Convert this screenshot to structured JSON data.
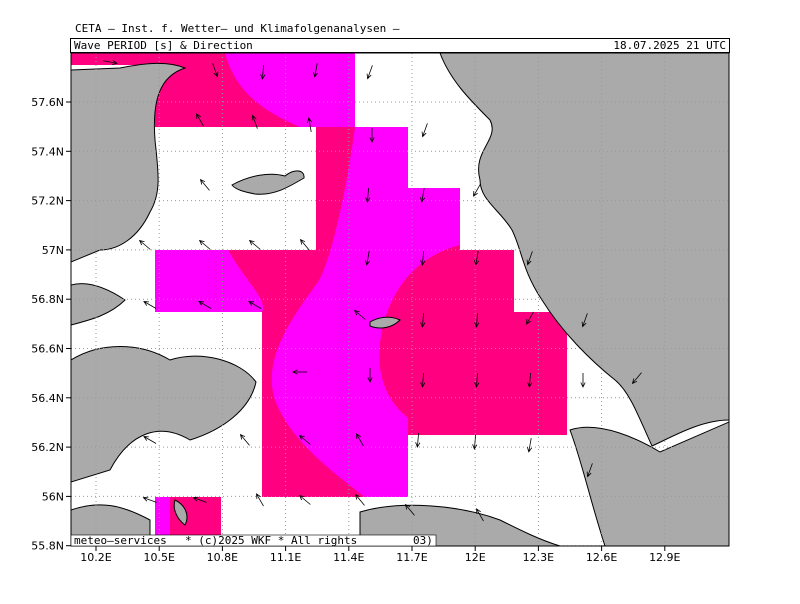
{
  "header": {
    "title": "CETA — Inst. f. Wetter— und Klimafolgenanalysen —",
    "parameter": "Wave PERIOD [s] & Direction",
    "valid_time": "18.07.2025 21 UTC"
  },
  "map": {
    "latitude_labels": [
      "57.6N",
      "57.4N",
      "57.2N",
      "57N",
      "56.8N",
      "56.6N",
      "56.4N",
      "56.2N",
      "56N",
      "55.8N"
    ],
    "longitude_labels": [
      "10.2E",
      "10.5E",
      "10.8E",
      "11.1E",
      "11.4E",
      "11.7E",
      "12E",
      "12.3E",
      "12.6E",
      "12.9E"
    ]
  },
  "footer": {
    "provider": "meteo—services",
    "copyright": "* (c)2025 WKF * All rights",
    "note": "03)"
  }
}
